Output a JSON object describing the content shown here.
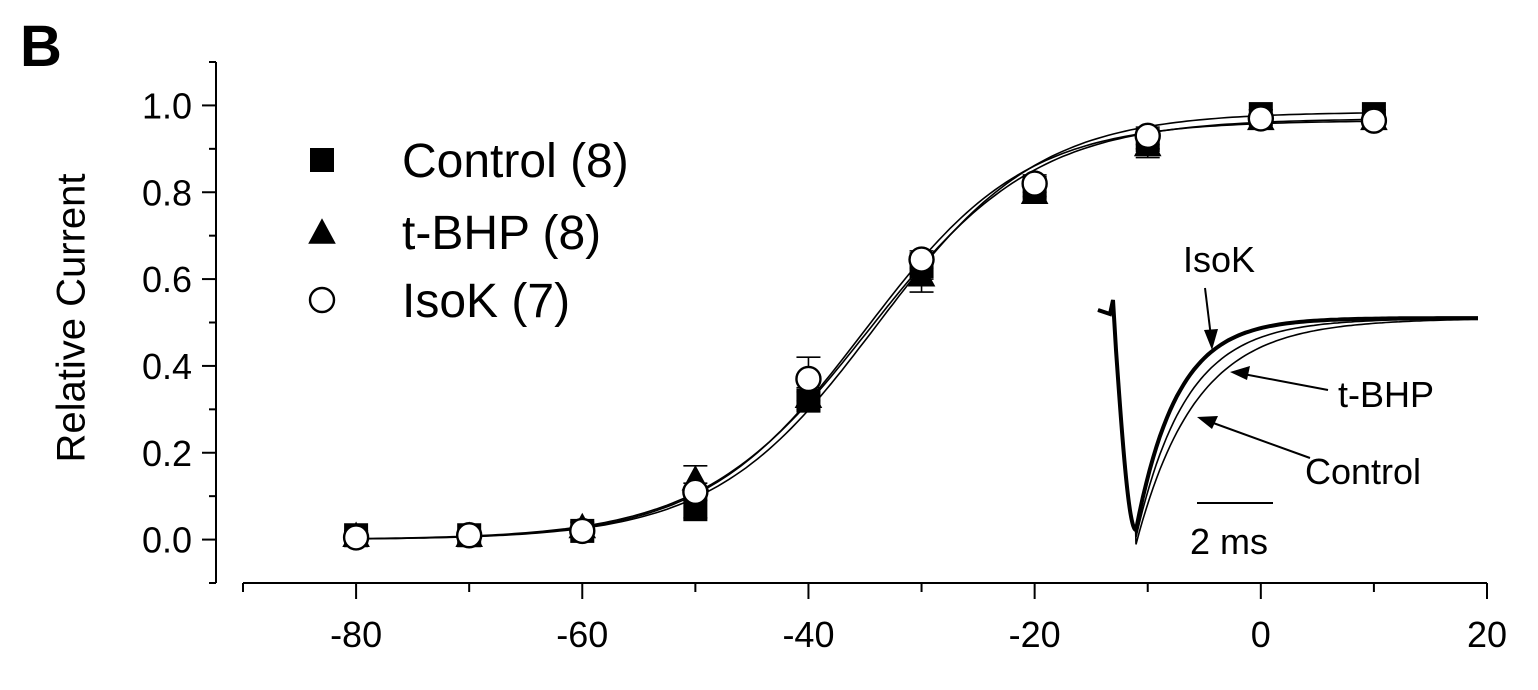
{
  "panel_label": "B",
  "chart_data": {
    "type": "scatter",
    "ylabel": "Relative Current",
    "xlabel": "",
    "xlim": [
      -90,
      20
    ],
    "ylim": [
      -0.1,
      1.1
    ],
    "x_ticks": [
      -80,
      -60,
      -40,
      -20,
      0,
      20
    ],
    "y_ticks": [
      "0.0",
      "0.2",
      "0.4",
      "0.6",
      "0.8",
      "1.0"
    ],
    "y_tick_values": [
      0,
      0.2,
      0.4,
      0.6,
      0.8,
      1.0
    ],
    "x": [
      -80,
      -70,
      -60,
      -50,
      -40,
      -30,
      -20,
      -10,
      0,
      10
    ],
    "series": [
      {
        "name": "Control (8)",
        "marker": "filled-square",
        "values": [
          0.01,
          0.01,
          0.02,
          0.07,
          0.32,
          0.63,
          0.81,
          0.92,
          0.98,
          0.98
        ],
        "errors": [
          0.01,
          0.01,
          0.01,
          0.02,
          0.02,
          0.03,
          0.02,
          0.02,
          0.01,
          0.01
        ]
      },
      {
        "name": "t-BHP (8)",
        "marker": "filled-triangle",
        "values": [
          0.01,
          0.01,
          0.03,
          0.14,
          0.33,
          0.61,
          0.8,
          0.91,
          0.97,
          0.97
        ],
        "errors": [
          0.01,
          0.01,
          0.01,
          0.03,
          0.02,
          0.04,
          0.02,
          0.03,
          0.02,
          0.01
        ]
      },
      {
        "name": "IsoK (7)",
        "marker": "open-circle",
        "values": [
          0.005,
          0.01,
          0.02,
          0.11,
          0.37,
          0.645,
          0.82,
          0.93,
          0.97,
          0.965
        ],
        "errors": [
          0.01,
          0.01,
          0.01,
          0.02,
          0.05,
          0.02,
          0.02,
          0.02,
          0.01,
          0.01
        ]
      }
    ],
    "fits": [
      {
        "series": "Control (8)",
        "v_half": -34.0,
        "slope": 7.2,
        "max": 0.985
      },
      {
        "series": "t-BHP (8)",
        "v_half": -34.6,
        "slope": 7.4,
        "max": 0.97
      },
      {
        "series": "IsoK (7)",
        "v_half": -35.0,
        "slope": 7.1,
        "max": 0.965
      }
    ],
    "legend_position": "top-left",
    "inset": {
      "labels": [
        "IsoK",
        "t-BHP",
        "Control"
      ],
      "scale_bar": "2 ms"
    }
  }
}
